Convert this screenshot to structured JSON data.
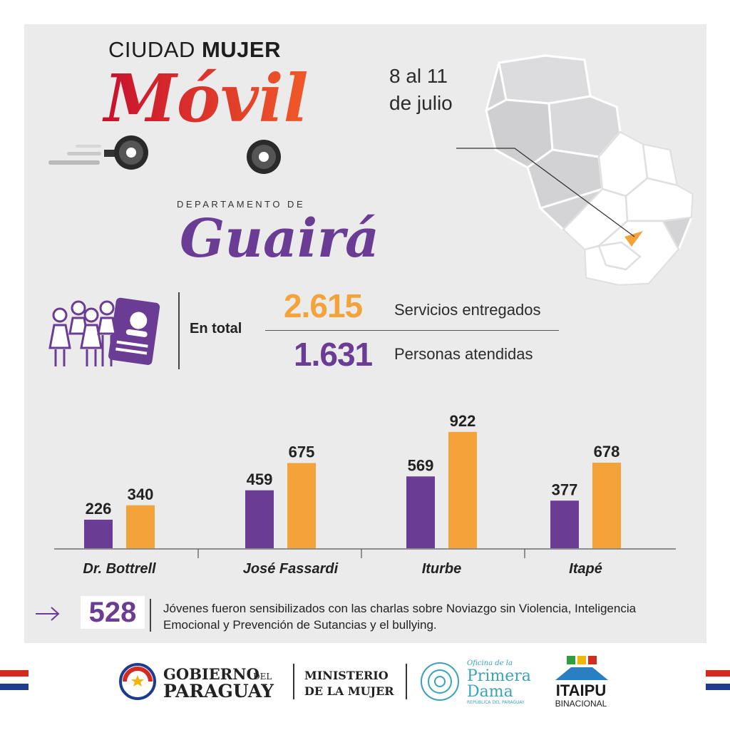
{
  "header": {
    "program_title_part1": "CIUDAD",
    "program_title_part2": "MUJER",
    "program_subtitle": "Móvil",
    "dates": "8 al 11 de julio",
    "department_label": "DEPARTAMENTO DE",
    "department_name": "Guairá"
  },
  "totals": {
    "label": "En total",
    "services_value": "2.615",
    "services_label": "Servicios entregados",
    "people_value": "1.631",
    "people_label": "Personas atendidas"
  },
  "chart_data": {
    "type": "bar",
    "categories": [
      "Dr. Bottrell",
      "José Fassardi",
      "Iturbe",
      "Itapé"
    ],
    "series": [
      {
        "values": [
          226,
          459,
          569,
          377
        ],
        "color": "#6a3c94"
      },
      {
        "values": [
          340,
          675,
          922,
          678
        ],
        "color": "#f4a23a"
      }
    ],
    "ylim": [
      0,
      1000
    ],
    "grid": false
  },
  "youth": {
    "value": "528",
    "text": "Jóvenes fueron sensibilizados con las charlas sobre Noviazgo sin Violencia, Inteligencia Emocional y Prevención de Sutancias y el bullying."
  },
  "logos": {
    "gobierno_line1": "GOBIERNO",
    "gobierno_del": "DEL",
    "gobierno_line2": "PARAGUAY",
    "ministerio_line1": "MINISTERIO",
    "ministerio_line2": "DE LA MUJER",
    "pd_line1": "Oficina de la",
    "pd_line2": "Primera",
    "pd_line3": "Dama",
    "pd_line4": "REPÚBLICA DEL PARAGUAY",
    "itaipu_line1": "ITAIPU",
    "itaipu_line2": "BINACIONAL"
  },
  "colors": {
    "purple": "#6a3c94",
    "orange": "#f4a23a",
    "red": "#d42a1f"
  }
}
